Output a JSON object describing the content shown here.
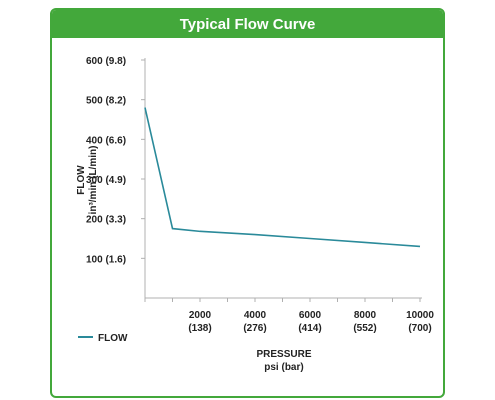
{
  "chart_data": {
    "type": "line",
    "title": "Typical Flow Curve",
    "xlabel": "PRESSURE",
    "xlabel_units": "psi (bar)",
    "ylabel": "FLOW",
    "ylabel_units": "in³/min (L/min)",
    "xlim": [
      0,
      10000
    ],
    "ylim": [
      0,
      600
    ],
    "x_ticks": [
      {
        "value": 2000,
        "label": "2000",
        "sub": "(138)"
      },
      {
        "value": 4000,
        "label": "4000",
        "sub": "(276)"
      },
      {
        "value": 6000,
        "label": "6000",
        "sub": "(414)"
      },
      {
        "value": 8000,
        "label": "8000",
        "sub": "(552)"
      },
      {
        "value": 10000,
        "label": "10000",
        "sub": "(700)"
      }
    ],
    "y_ticks": [
      {
        "value": 100,
        "label": "100  (1.6)"
      },
      {
        "value": 200,
        "label": "200  (3.3)"
      },
      {
        "value": 300,
        "label": "300  (4.9)"
      },
      {
        "value": 400,
        "label": "400  (6.6)"
      },
      {
        "value": 500,
        "label": "500  (8.2)"
      },
      {
        "value": 600,
        "label": "600  (9.8)"
      }
    ],
    "series": [
      {
        "name": "FLOW",
        "color": "#2a8a9a",
        "x": [
          0,
          1000,
          2000,
          4000,
          6000,
          8000,
          10000
        ],
        "y": [
          480,
          175,
          168,
          160,
          150,
          140,
          130
        ]
      }
    ],
    "legend": "bottom-left",
    "grid": false
  }
}
